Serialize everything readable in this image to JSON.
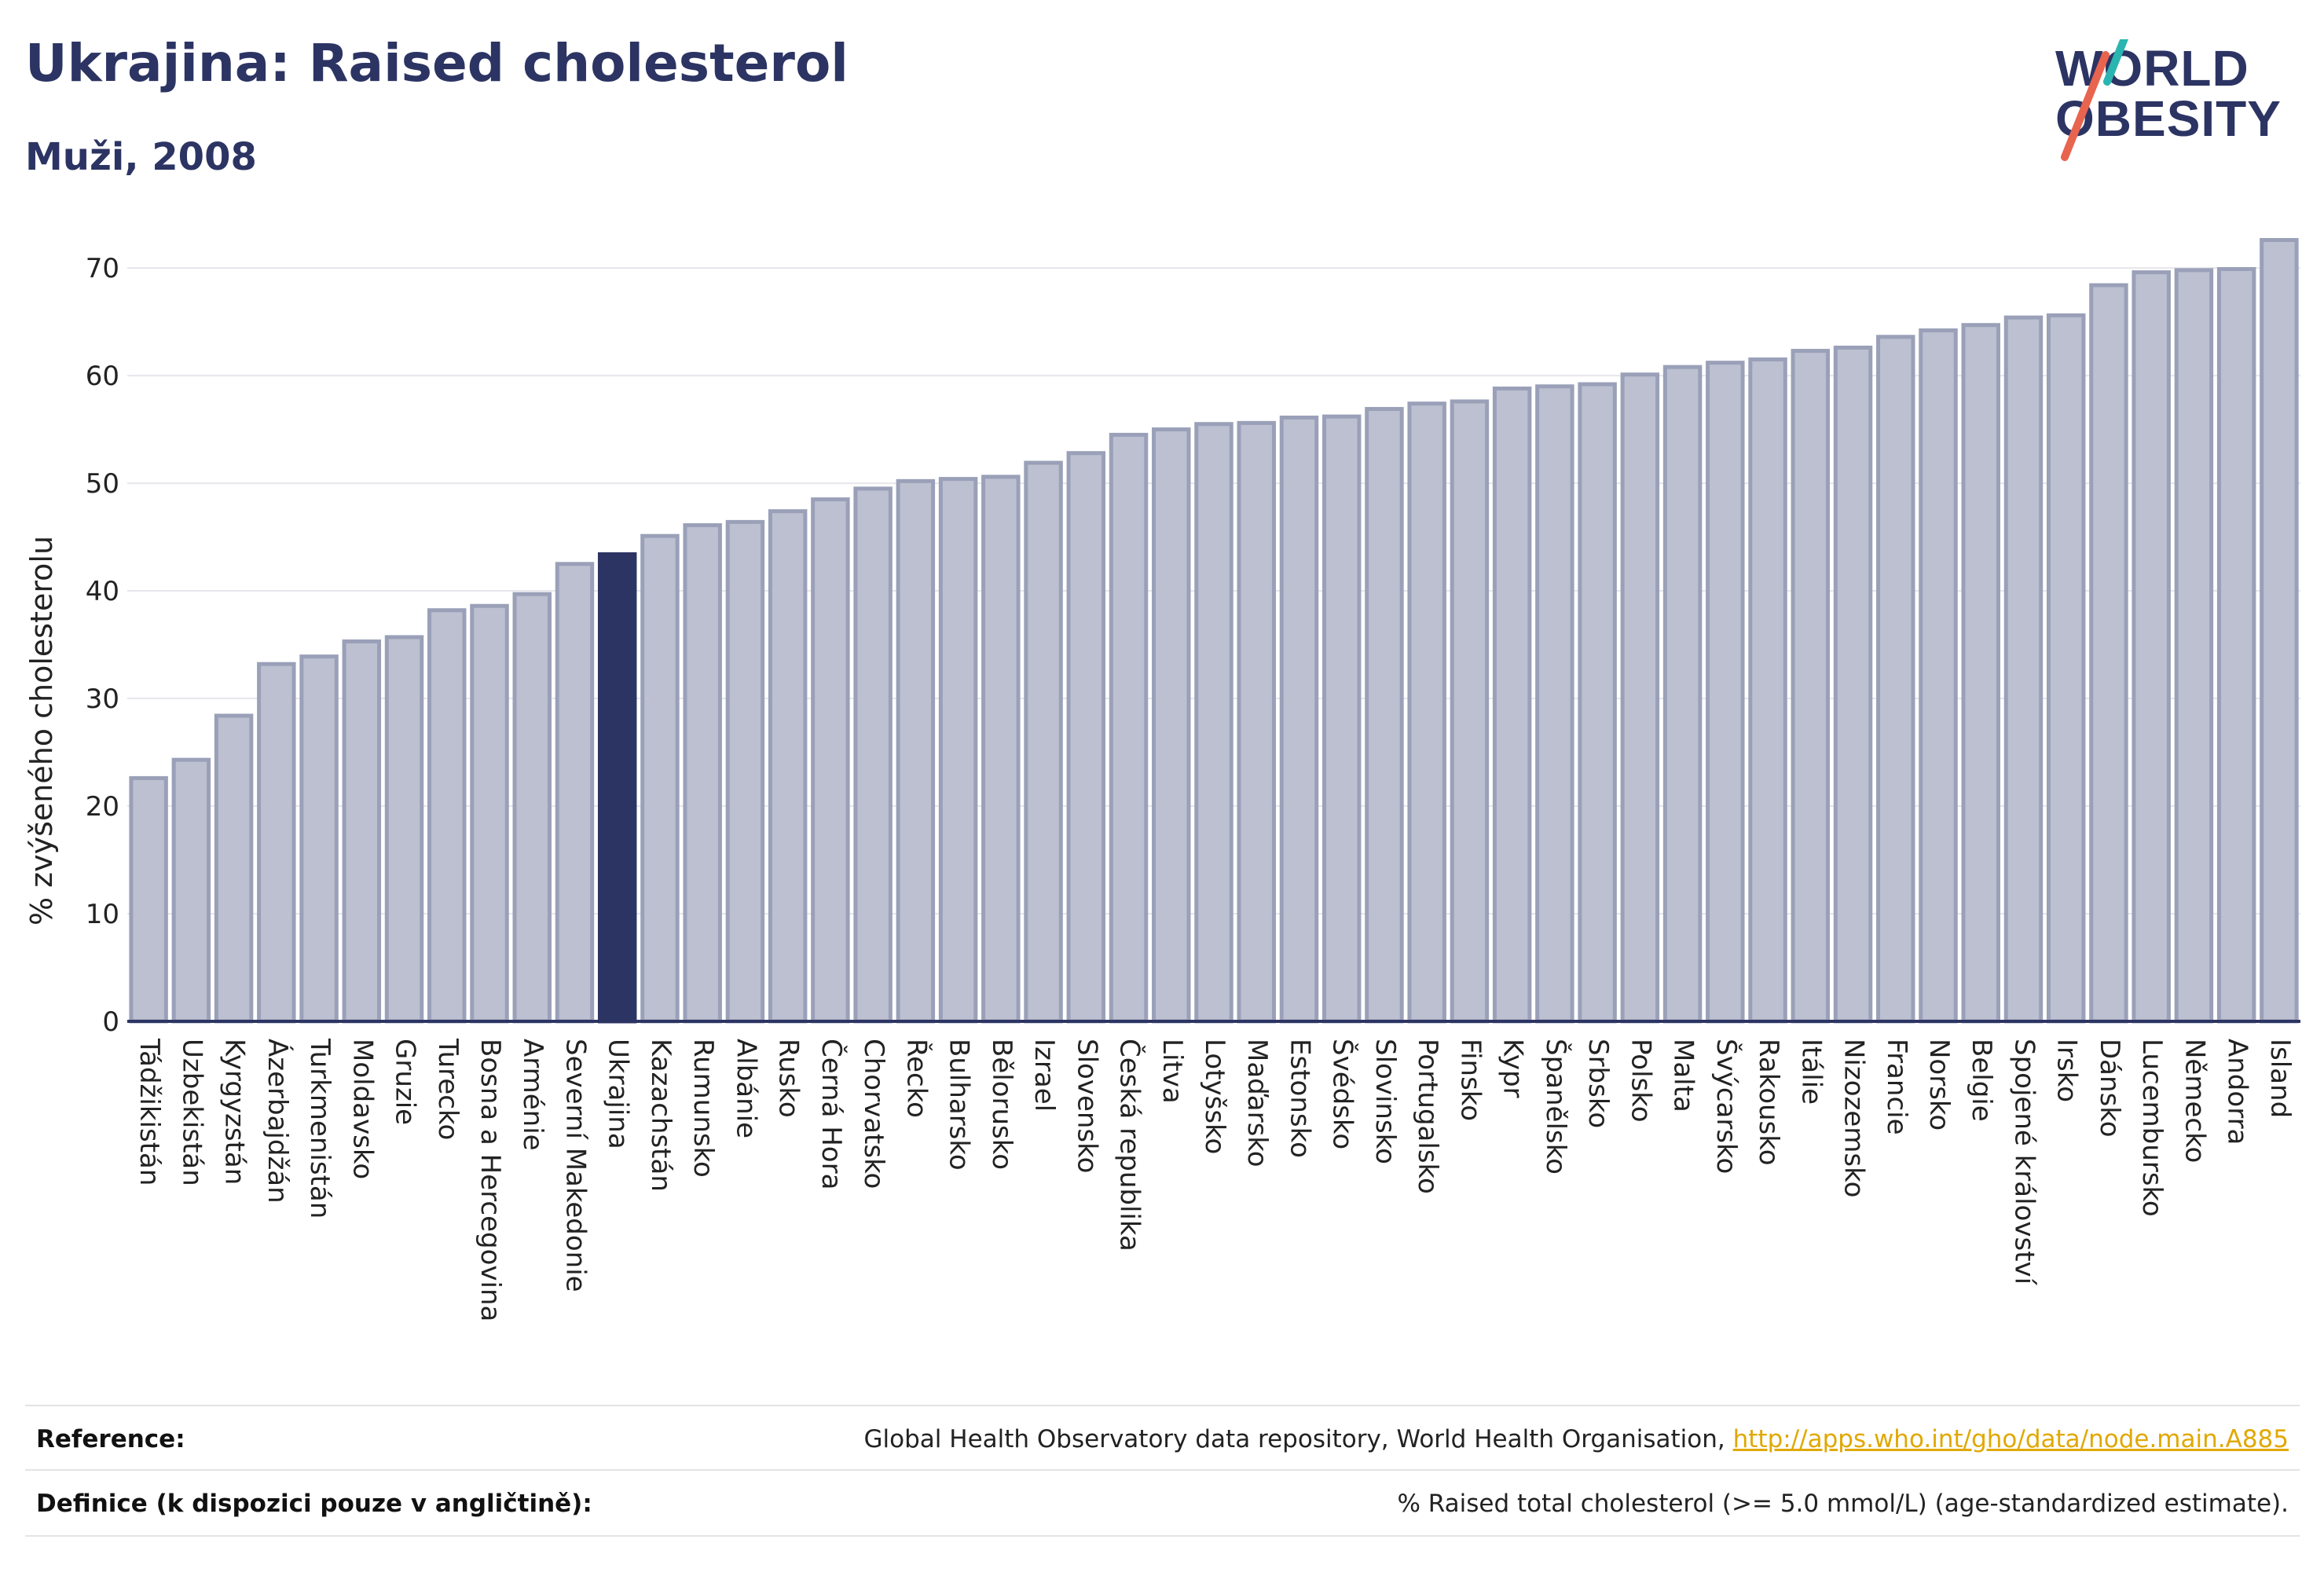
{
  "header": {
    "title": "Ukrajina: Raised cholesterol",
    "subtitle": "Muži, 2008"
  },
  "logo": {
    "line1": "WORLD",
    "line2": "OBESITY",
    "accent_color": "#e8644e",
    "accent_color_2": "#2bb5b0"
  },
  "colors": {
    "bar_default": "#bcc0d0",
    "bar_default_stroke": "#9aa0b8",
    "bar_highlight": "#2c3463",
    "text_dark": "#2c3463"
  },
  "chart_data": {
    "type": "bar",
    "ylabel": "% zvýšeného cholesterolu",
    "ylim": [
      0,
      73
    ],
    "yticks": [
      0,
      10,
      20,
      30,
      40,
      50,
      60,
      70
    ],
    "grid": true,
    "highlight": "Ukrajina",
    "categories": [
      "Tádžikistán",
      "Uzbekistán",
      "Kyrgyzstán",
      "Ázerbajdžán",
      "Turkmenistán",
      "Moldavsko",
      "Gruzie",
      "Turecko",
      "Bosna a Hercegovina",
      "Arménie",
      "Severní Makedonie",
      "Ukrajina",
      "Kazachstán",
      "Rumunsko",
      "Albánie",
      "Rusko",
      "Černá Hora",
      "Chorvatsko",
      "Řecko",
      "Bulharsko",
      "Bělorusko",
      "Izrael",
      "Slovensko",
      "Česká republika",
      "Litva",
      "Lotyšsko",
      "Maďarsko",
      "Estonsko",
      "Švédsko",
      "Slovinsko",
      "Portugalsko",
      "Finsko",
      "Kypr",
      "Španělsko",
      "Srbsko",
      "Polsko",
      "Malta",
      "Švýcarsko",
      "Rakousko",
      "Itálie",
      "Nizozemsko",
      "Francie",
      "Norsko",
      "Belgie",
      "Spojené království",
      "Irsko",
      "Dánsko",
      "Lucembursko",
      "Německo",
      "Andorra",
      "Island"
    ],
    "values": [
      22.6,
      24.3,
      28.4,
      33.2,
      33.9,
      35.3,
      35.7,
      38.2,
      38.6,
      39.7,
      42.5,
      43.4,
      45.1,
      46.1,
      46.4,
      47.4,
      48.5,
      49.5,
      50.2,
      50.4,
      50.6,
      51.9,
      52.8,
      54.5,
      55.0,
      55.5,
      55.6,
      56.1,
      56.2,
      56.9,
      57.4,
      57.6,
      58.8,
      59.0,
      59.2,
      60.1,
      60.8,
      61.2,
      61.5,
      62.3,
      62.6,
      63.6,
      64.2,
      64.7,
      65.4,
      65.6,
      68.4,
      69.6,
      69.8,
      69.9,
      72.6
    ]
  },
  "footer": {
    "reference_label": "Reference:",
    "reference_text": "Global Health Observatory data repository, World Health Organisation, ",
    "reference_link": "http://apps.who.int/gho/data/node.main.A885",
    "definition_label": "Definice (k dispozici pouze v angličtině):",
    "definition_text": "% Raised total cholesterol (>= 5.0 mmol/L) (age-standardized estimate)."
  }
}
